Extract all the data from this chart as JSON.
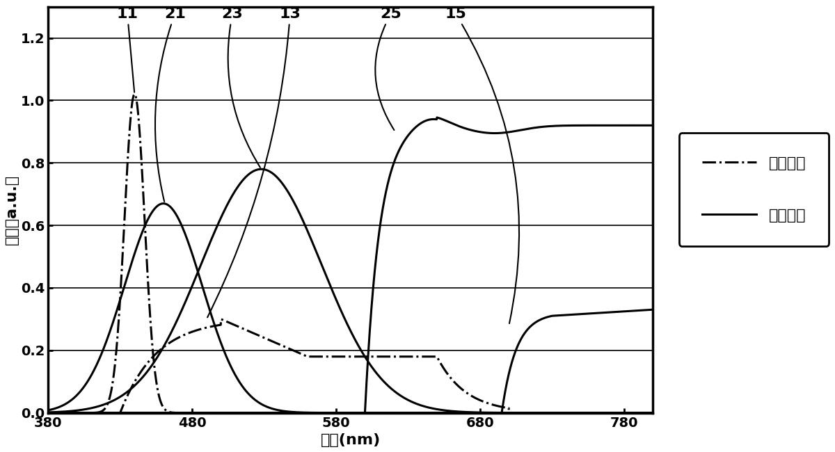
{
  "xlabel": "波长(nm)",
  "ylabel": "强度（a.u.）",
  "xlim": [
    380,
    800
  ],
  "ylim": [
    0.0,
    1.3
  ],
  "xticks": [
    380,
    480,
    580,
    680,
    780
  ],
  "yticks": [
    0.0,
    0.2,
    0.4,
    0.6,
    0.8,
    1.0,
    1.2
  ],
  "background": "#ffffff",
  "legend_entry_emission": "发射频谱",
  "legend_entry_transmission": "穿透频谱",
  "label_11": "11",
  "label_21": "21",
  "label_23": "23",
  "label_13": "13",
  "label_25": "25",
  "label_15": "15"
}
